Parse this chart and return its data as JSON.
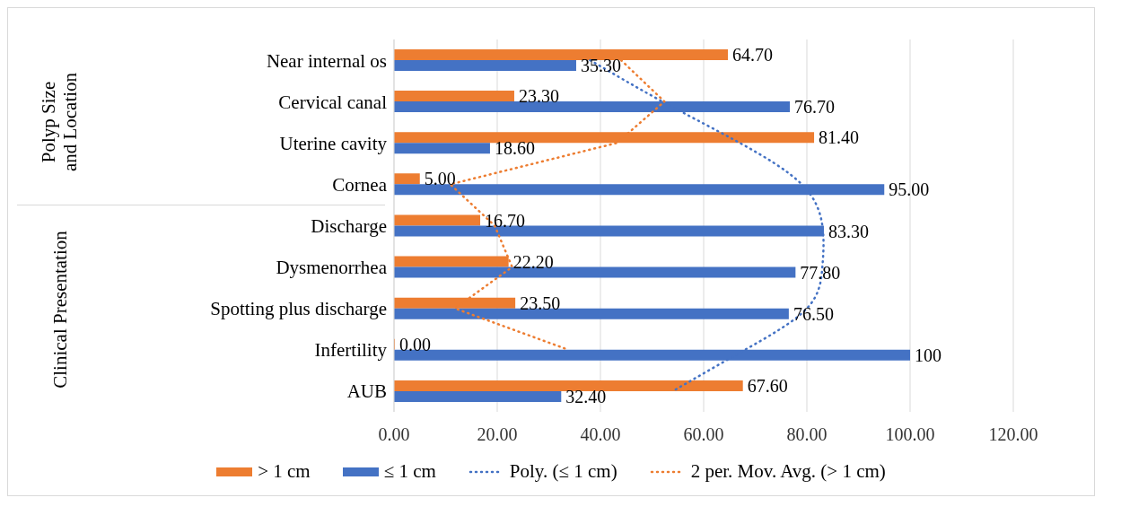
{
  "chart_data": {
    "type": "bar",
    "orientation": "horizontal",
    "categories": [
      "Near internal os",
      "Cervical canal",
      "Uterine cavity",
      "Cornea",
      "Discharge",
      "Dysmenorrhea",
      "Spotting plus   discharge",
      "Infertility",
      "AUB"
    ],
    "series": [
      {
        "name": "> 1 cm",
        "color": "#ed7d31",
        "values": [
          64.7,
          23.3,
          81.4,
          5.0,
          16.7,
          22.2,
          23.5,
          0.0,
          67.6
        ],
        "value_labels": [
          "64.70",
          "23.30",
          "81.40",
          "5.00",
          "16.70",
          "22.20",
          "23.50",
          "0.00",
          "67.60"
        ]
      },
      {
        "name": "≤ 1 cm",
        "color": "#4472c4",
        "values": [
          35.3,
          76.7,
          18.6,
          95.0,
          83.3,
          77.8,
          76.5,
          100,
          32.4
        ],
        "value_labels": [
          "35.30",
          "76.70",
          "18.60",
          "95.00",
          "83.30",
          "77.80",
          "76.50",
          "100",
          "32.40"
        ]
      },
      {
        "name": "Poly. (≤ 1 cm)",
        "type": "line",
        "color": "#4472c4",
        "line_style": "dotted",
        "values": [
          38,
          52,
          67,
          79,
          83,
          83,
          80,
          68,
          54
        ]
      },
      {
        "name": "2 per. Mov. Avg. (> 1 cm)",
        "type": "line",
        "color": "#ed7d31",
        "line_style": "dotted",
        "values": [
          44.0,
          52.4,
          43.2,
          10.9,
          19.5,
          22.9,
          11.8,
          33.8,
          null
        ]
      }
    ],
    "xlim": [
      0,
      120
    ],
    "xticks": [
      {
        "value": 0,
        "label": "0.00"
      },
      {
        "value": 20,
        "label": "20.00"
      },
      {
        "value": 40,
        "label": "40.00"
      },
      {
        "value": 60,
        "label": "60.00"
      },
      {
        "value": 80,
        "label": "80.00"
      },
      {
        "value": 100,
        "label": "100.00"
      },
      {
        "value": 120,
        "label": "120.00"
      }
    ],
    "grid": "x",
    "legend": "bottom",
    "marker": "none",
    "annotations": [
      "Polyp Size and Location",
      "Clinical Presentation"
    ]
  }
}
